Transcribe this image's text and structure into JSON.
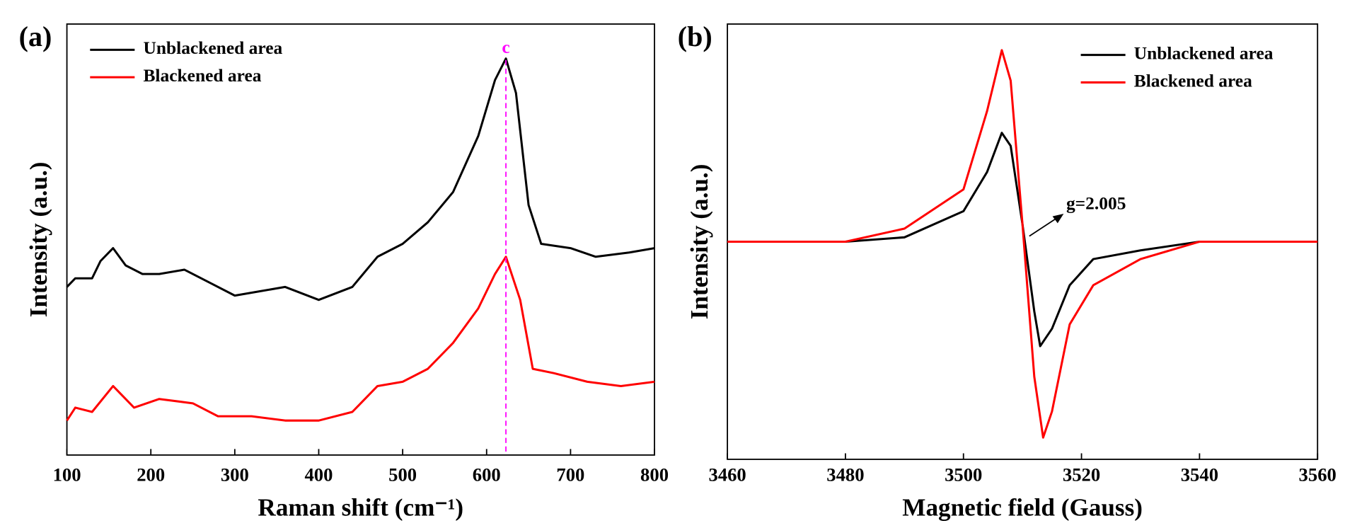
{
  "chart_data": [
    {
      "type": "line",
      "panel": "(a)",
      "xlabel": "Raman shift (cm⁻¹)",
      "ylabel": "Intensity (a.u.)",
      "xlim": [
        100,
        800
      ],
      "xticks": [
        100,
        200,
        300,
        400,
        500,
        600,
        700,
        800
      ],
      "ylim": [
        0,
        100
      ],
      "legend": "upper left",
      "annotations": [
        {
          "text": "c",
          "x": 623
        }
      ],
      "series": [
        {
          "name": "Unblackened area",
          "color": "#000000",
          "x": [
            100,
            110,
            130,
            140,
            155,
            170,
            190,
            210,
            240,
            270,
            300,
            330,
            360,
            400,
            440,
            470,
            500,
            530,
            560,
            590,
            610,
            623,
            635,
            650,
            665,
            700,
            730,
            770,
            800
          ],
          "values": [
            39,
            41,
            41,
            45,
            48,
            44,
            42,
            42,
            43,
            40,
            37,
            38,
            39,
            36,
            39,
            46,
            49,
            54,
            61,
            74,
            87,
            92,
            84,
            58,
            49,
            48,
            46,
            47,
            48
          ]
        },
        {
          "name": "Blackened area",
          "color": "#ff0000",
          "x": [
            100,
            110,
            130,
            155,
            180,
            210,
            250,
            280,
            320,
            360,
            400,
            440,
            470,
            500,
            530,
            560,
            590,
            610,
            623,
            640,
            655,
            680,
            720,
            760,
            800
          ],
          "values": [
            8,
            11,
            10,
            16,
            11,
            13,
            12,
            9,
            9,
            8,
            8,
            10,
            16,
            17,
            20,
            26,
            34,
            42,
            46,
            36,
            20,
            19,
            17,
            16,
            17
          ]
        }
      ]
    },
    {
      "type": "line",
      "panel": "(b)",
      "xlabel": "Magnetic field (Gauss)",
      "ylabel": "Intensity (a.u.)",
      "xlim": [
        3460,
        3560
      ],
      "xticks": [
        3460,
        3480,
        3500,
        3520,
        3540,
        3560
      ],
      "ylim": [
        0,
        100
      ],
      "legend": "upper right",
      "annotations": [
        {
          "text": "g=2.005"
        }
      ],
      "series": [
        {
          "name": "Unblackened area",
          "color": "#000000",
          "x": [
            3460,
            3480,
            3490,
            3500,
            3504,
            3506.5,
            3508,
            3510,
            3512,
            3513,
            3515,
            3518,
            3522,
            3530,
            3540,
            3560
          ],
          "values": [
            50,
            50,
            51,
            57,
            66,
            75,
            72,
            54,
            34,
            26,
            30,
            40,
            46,
            48,
            50,
            50
          ]
        },
        {
          "name": "Blackened area",
          "color": "#ff0000",
          "x": [
            3460,
            3480,
            3490,
            3500,
            3504,
            3506.5,
            3508,
            3510,
            3512,
            3513.5,
            3515,
            3518,
            3522,
            3530,
            3540,
            3560
          ],
          "values": [
            50,
            50,
            53,
            62,
            80,
            94,
            87,
            54,
            19,
            5,
            11,
            31,
            40,
            46,
            50,
            50
          ]
        }
      ]
    }
  ]
}
